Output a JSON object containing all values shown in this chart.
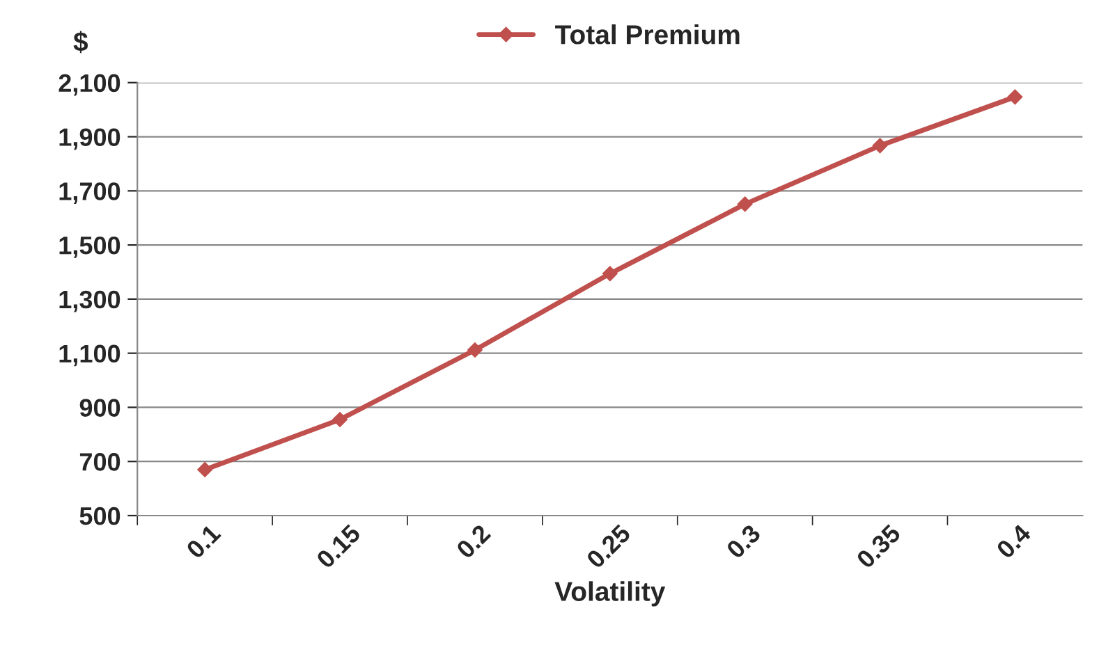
{
  "chart_data": {
    "type": "line",
    "xlabel": "Volatility",
    "ylabel": "$",
    "categories": [
      "0.1",
      "0.15",
      "0.2",
      "0.25",
      "0.3",
      "0.35",
      "0.4"
    ],
    "series": [
      {
        "name": "Total Premium",
        "color": "#c0504d",
        "values": [
          670,
          855,
          1112,
          1394,
          1651,
          1867,
          2047
        ]
      }
    ],
    "ylim": [
      500,
      2100
    ],
    "yticks": [
      {
        "value": 500,
        "label": "500"
      },
      {
        "value": 700,
        "label": "700"
      },
      {
        "value": 900,
        "label": "900"
      },
      {
        "value": 1100,
        "label": "1,100"
      },
      {
        "value": 1300,
        "label": "1,300"
      },
      {
        "value": 1500,
        "label": "1,500"
      },
      {
        "value": 1700,
        "label": "1,700"
      },
      {
        "value": 1900,
        "label": "1,900"
      },
      {
        "value": 2100,
        "label": "2,100"
      }
    ],
    "grid": "y",
    "legend": "top",
    "marker": "diamond",
    "line_style": "solid"
  }
}
